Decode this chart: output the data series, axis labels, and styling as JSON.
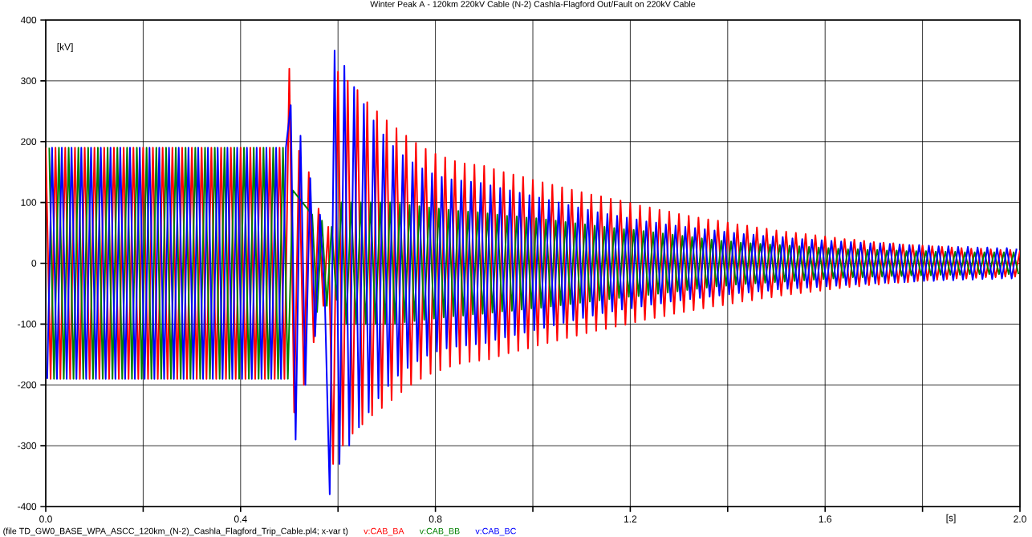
{
  "chart_data": {
    "type": "line",
    "title": "Winter Peak A - 120km 220kV Cable (N-2) Cashla-Flagford Out/Fault on 220kV Cable",
    "xlabel": "[s]",
    "ylabel": "[kV]",
    "annotations": [
      "(file TD_GW0_BASE_WPA_ASCC_120km_(N-2)_Cashla_Flagford_Trip_Cable.pl4; x-var t)"
    ],
    "xlim": [
      0,
      2
    ],
    "ylim": [
      -400,
      400
    ],
    "xticks": [
      {
        "value": 0,
        "label": "0.0"
      },
      {
        "value": 0.2,
        "label": null
      },
      {
        "value": 0.4,
        "label": "0.4"
      },
      {
        "value": 0.6,
        "label": null
      },
      {
        "value": 0.8,
        "label": "0.8"
      },
      {
        "value": 1.0,
        "label": null
      },
      {
        "value": 1.2,
        "label": "1.2"
      },
      {
        "value": 1.4,
        "label": null
      },
      {
        "value": 1.6,
        "label": "1.6"
      },
      {
        "value": 1.8,
        "label": null
      },
      {
        "value": 2.0,
        "label": "2.0"
      }
    ],
    "yticks": [
      -400,
      -300,
      -200,
      -100,
      0,
      100,
      200,
      300,
      400
    ],
    "grid": true,
    "legend": "bottom",
    "line_style": "solid",
    "series": [
      {
        "name": "v:CAB_BA",
        "color": "#ff0000",
        "x": [
          0,
          0.01,
          0.02,
          0.03,
          0.04,
          0.05,
          0.06,
          0.07,
          0.08,
          0.09,
          0.1,
          0.11,
          0.12,
          0.13,
          0.14,
          0.15,
          0.16,
          0.17,
          0.18,
          0.19,
          0.2,
          0.21,
          0.22,
          0.23,
          0.24,
          0.25,
          0.26,
          0.27,
          0.28,
          0.29,
          0.3,
          0.31,
          0.32,
          0.33,
          0.34,
          0.35,
          0.36,
          0.37,
          0.38,
          0.39,
          0.4,
          0.41,
          0.42,
          0.43,
          0.44,
          0.45,
          0.46,
          0.47,
          0.48,
          0.49,
          0.5,
          0.51,
          0.52,
          0.53,
          0.54,
          0.55,
          0.56,
          0.57,
          0.58,
          0.59,
          0.6,
          0.61,
          0.62,
          0.63,
          0.64,
          0.65,
          0.66,
          0.67,
          0.68,
          0.69,
          0.7,
          0.71,
          0.72,
          0.73,
          0.74,
          0.75,
          0.76,
          0.77,
          0.78,
          0.79,
          0.8,
          0.81,
          0.82,
          0.83,
          0.84,
          0.85,
          0.86,
          0.87,
          0.88,
          0.89,
          0.9,
          0.91,
          0.92,
          0.93,
          0.94,
          0.95,
          0.96,
          0.97,
          0.98,
          0.99,
          1.0,
          1.01,
          1.02,
          1.03,
          1.04,
          1.05,
          1.06,
          1.07,
          1.08,
          1.09,
          1.1,
          1.11,
          1.12,
          1.13,
          1.14,
          1.15,
          1.16,
          1.17,
          1.18,
          1.19,
          1.2,
          1.21,
          1.22,
          1.23,
          1.24,
          1.25,
          1.26,
          1.27,
          1.28,
          1.29,
          1.3,
          1.31,
          1.32,
          1.33,
          1.34,
          1.35,
          1.36,
          1.37,
          1.38,
          1.39,
          1.4,
          1.41,
          1.42,
          1.43,
          1.44,
          1.45,
          1.46,
          1.47,
          1.48,
          1.49,
          1.5,
          1.51,
          1.52,
          1.53,
          1.54,
          1.55,
          1.56,
          1.57,
          1.58,
          1.59,
          1.6,
          1.61,
          1.62,
          1.63,
          1.64,
          1.65,
          1.66,
          1.67,
          1.68,
          1.69,
          1.7,
          1.71,
          1.72,
          1.73,
          1.74,
          1.75,
          1.76,
          1.77,
          1.78,
          1.79,
          1.8,
          1.81,
          1.82,
          1.83,
          1.84,
          1.85,
          1.86,
          1.87,
          1.88,
          1.89,
          1.9,
          1.91,
          1.92,
          1.93,
          1.94,
          1.95,
          1.96,
          1.97,
          1.98,
          1.99,
          2.0
        ],
        "values": [
          190,
          -190,
          190,
          -190,
          190,
          -190,
          190,
          -190,
          190,
          -190,
          190,
          -190,
          190,
          -190,
          190,
          -190,
          190,
          -190,
          190,
          -190,
          190,
          -190,
          190,
          -190,
          190,
          -190,
          190,
          -190,
          190,
          -190,
          190,
          -190,
          190,
          -190,
          190,
          -190,
          190,
          -190,
          190,
          -190,
          190,
          -190,
          190,
          -190,
          190,
          -190,
          190,
          -190,
          190,
          -190,
          320,
          -245,
          185,
          -200,
          150,
          -130,
          90,
          -70,
          60,
          -330,
          315,
          -300,
          300,
          -280,
          285,
          -265,
          265,
          -250,
          250,
          -238,
          235,
          -225,
          222,
          -212,
          210,
          -200,
          198,
          -190,
          188,
          -182,
          180,
          -176,
          174,
          -170,
          168,
          -165,
          164,
          -162,
          162,
          -160,
          160,
          -158,
          155,
          -153,
          150,
          -148,
          146,
          -144,
          142,
          -140,
          137,
          -135,
          133,
          -131,
          129,
          -127,
          125,
          -123,
          121,
          -119,
          117,
          -115,
          113,
          -111,
          110,
          -108,
          106,
          -104,
          103,
          -101,
          99,
          -97,
          95,
          -93,
          92,
          -90,
          88,
          -87,
          85,
          -83,
          81,
          -80,
          78,
          -77,
          75,
          -74,
          72,
          -71,
          70,
          -69,
          67,
          -66,
          64,
          -63,
          62,
          -61,
          59,
          -58,
          57,
          -56,
          54,
          -53,
          52,
          -51,
          50,
          -49,
          48,
          -47,
          46,
          -45,
          44,
          -43,
          42,
          -41,
          40,
          -39,
          39,
          -38,
          37,
          -36,
          35,
          -35,
          34,
          -33,
          33,
          -32,
          31,
          -31,
          30,
          -29,
          29,
          -28,
          28,
          -27,
          27,
          -26,
          26,
          -25,
          25,
          -25,
          24,
          -24,
          24,
          -23,
          23,
          -23,
          22,
          -22,
          22,
          -22,
          21
        ]
      },
      {
        "name": "v:CAB_BB",
        "color": "#008000",
        "x": [
          0.007,
          0.017,
          0.027,
          0.037,
          0.047,
          0.057,
          0.067,
          0.077,
          0.087,
          0.097,
          0.107,
          0.117,
          0.127,
          0.137,
          0.147,
          0.157,
          0.167,
          0.177,
          0.187,
          0.197,
          0.207,
          0.217,
          0.227,
          0.237,
          0.247,
          0.257,
          0.267,
          0.277,
          0.287,
          0.297,
          0.307,
          0.317,
          0.327,
          0.337,
          0.347,
          0.357,
          0.367,
          0.377,
          0.387,
          0.397,
          0.407,
          0.417,
          0.427,
          0.437,
          0.447,
          0.457,
          0.467,
          0.477,
          0.487,
          0.497,
          0.507,
          0.517,
          0.527,
          0.537,
          0.547,
          0.557,
          0.567,
          0.577,
          0.587,
          0.597,
          0.607,
          0.617,
          0.627,
          0.637,
          0.647,
          0.657,
          0.667,
          0.677,
          0.687,
          0.697,
          0.707,
          0.717,
          0.727,
          0.737,
          0.747,
          0.757,
          0.767,
          0.777,
          0.787,
          0.797,
          0.807,
          0.817,
          0.827,
          0.837,
          0.847,
          0.857,
          0.867,
          0.877,
          0.887,
          0.897,
          0.907,
          0.917,
          0.927,
          0.937,
          0.947,
          0.957,
          0.967,
          0.977,
          0.987,
          0.997,
          1.007,
          1.017,
          1.027,
          1.037,
          1.047,
          1.057,
          1.067,
          1.077,
          1.087,
          1.097,
          1.107,
          1.117,
          1.127,
          1.137,
          1.147,
          1.157,
          1.167,
          1.177,
          1.187,
          1.197,
          1.207,
          1.217,
          1.227,
          1.237,
          1.247,
          1.257,
          1.267,
          1.277,
          1.287,
          1.297,
          1.307,
          1.317,
          1.327,
          1.337,
          1.347,
          1.357,
          1.367,
          1.377,
          1.387,
          1.397,
          1.407,
          1.417,
          1.427,
          1.437,
          1.447,
          1.457,
          1.467,
          1.477,
          1.487,
          1.497,
          1.507,
          1.517,
          1.527,
          1.537,
          1.547,
          1.557,
          1.567,
          1.577,
          1.587,
          1.597,
          1.607,
          1.617,
          1.627,
          1.637,
          1.647,
          1.657,
          1.667,
          1.677,
          1.687,
          1.697,
          1.707,
          1.717,
          1.727,
          1.737,
          1.747,
          1.757,
          1.767,
          1.777,
          1.787,
          1.797,
          1.807,
          1.817,
          1.827,
          1.837,
          1.847,
          1.857,
          1.867,
          1.877,
          1.887,
          1.897,
          1.907,
          1.917,
          1.927,
          1.937,
          1.947,
          1.957,
          1.967,
          1.977,
          1.987,
          1.997
        ],
        "values": [
          190,
          -190,
          190,
          -190,
          190,
          -190,
          190,
          -190,
          190,
          -190,
          190,
          -190,
          190,
          -190,
          190,
          -190,
          190,
          -190,
          190,
          -190,
          190,
          -190,
          190,
          -190,
          190,
          -190,
          190,
          -190,
          190,
          -190,
          190,
          -190,
          190,
          -190,
          190,
          -190,
          190,
          -190,
          190,
          -190,
          190,
          -190,
          190,
          -190,
          190,
          -190,
          190,
          -190,
          190,
          -190,
          120,
          null,
          100,
          null,
          80,
          -80,
          70,
          -70,
          60,
          -60,
          100,
          -100,
          100,
          -100,
          100,
          -100,
          100,
          -100,
          100,
          -100,
          100,
          -99,
          98,
          -97,
          96,
          -95,
          94,
          -93,
          92,
          -91,
          90,
          -89,
          88,
          -87,
          86,
          -86,
          85,
          -84,
          84,
          -83,
          82,
          -81,
          80,
          -79,
          78,
          -78,
          77,
          -76,
          75,
          -74,
          74,
          -73,
          72,
          -71,
          70,
          -69,
          68,
          -67,
          66,
          -65,
          64,
          -63,
          62,
          -61,
          60,
          -59,
          58,
          -57,
          56,
          -55,
          55,
          -54,
          53,
          -52,
          51,
          -50,
          49,
          -48,
          47,
          -46,
          45,
          -44,
          43,
          -42,
          41,
          -40,
          39,
          -38,
          37,
          -37,
          36,
          -35,
          34,
          -34,
          33,
          -33,
          32,
          -32,
          31,
          -31,
          30,
          -30,
          29,
          -29,
          28,
          -28,
          27,
          -27,
          26,
          -26,
          25,
          -25,
          24,
          -24,
          23,
          -23,
          23,
          -23,
          22,
          -22,
          22,
          -22,
          21,
          -21,
          21,
          -21,
          20,
          -20,
          20,
          -20,
          20,
          -20,
          19,
          -19,
          19,
          -19,
          19,
          -19,
          18,
          -18,
          18,
          -18,
          18,
          -18,
          18,
          -18,
          18,
          -18,
          18,
          -18
        ]
      },
      {
        "name": "v:CAB_BC",
        "color": "#0000ff",
        "x": [
          0.003,
          0.013,
          0.023,
          0.033,
          0.043,
          0.053,
          0.063,
          0.073,
          0.083,
          0.093,
          0.103,
          0.113,
          0.123,
          0.133,
          0.143,
          0.153,
          0.163,
          0.173,
          0.183,
          0.193,
          0.203,
          0.213,
          0.223,
          0.233,
          0.243,
          0.253,
          0.263,
          0.273,
          0.283,
          0.293,
          0.303,
          0.313,
          0.323,
          0.333,
          0.343,
          0.353,
          0.363,
          0.373,
          0.383,
          0.393,
          0.403,
          0.413,
          0.423,
          0.433,
          0.443,
          0.453,
          0.463,
          0.473,
          0.483,
          0.493,
          0.503,
          0.513,
          0.523,
          0.533,
          0.543,
          0.553,
          0.563,
          0.573,
          0.583,
          0.593,
          0.603,
          0.613,
          0.623,
          0.633,
          0.643,
          0.653,
          0.663,
          0.673,
          0.683,
          0.693,
          0.703,
          0.713,
          0.723,
          0.733,
          0.743,
          0.753,
          0.763,
          0.773,
          0.783,
          0.793,
          0.803,
          0.813,
          0.823,
          0.833,
          0.843,
          0.853,
          0.863,
          0.873,
          0.883,
          0.893,
          0.903,
          0.913,
          0.923,
          0.933,
          0.943,
          0.953,
          0.963,
          0.973,
          0.983,
          0.993,
          1.003,
          1.013,
          1.023,
          1.033,
          1.043,
          1.053,
          1.063,
          1.073,
          1.083,
          1.093,
          1.103,
          1.113,
          1.123,
          1.133,
          1.143,
          1.153,
          1.163,
          1.173,
          1.183,
          1.193,
          1.203,
          1.213,
          1.223,
          1.233,
          1.243,
          1.253,
          1.263,
          1.273,
          1.283,
          1.293,
          1.303,
          1.313,
          1.323,
          1.333,
          1.343,
          1.353,
          1.363,
          1.373,
          1.383,
          1.393,
          1.403,
          1.413,
          1.423,
          1.433,
          1.443,
          1.453,
          1.463,
          1.473,
          1.483,
          1.493,
          1.503,
          1.513,
          1.523,
          1.533,
          1.543,
          1.553,
          1.563,
          1.573,
          1.583,
          1.593,
          1.603,
          1.613,
          1.623,
          1.633,
          1.643,
          1.653,
          1.663,
          1.673,
          1.683,
          1.693,
          1.703,
          1.713,
          1.723,
          1.733,
          1.743,
          1.753,
          1.763,
          1.773,
          1.783,
          1.793,
          1.803,
          1.813,
          1.823,
          1.833,
          1.843,
          1.853,
          1.863,
          1.873,
          1.883,
          1.893,
          1.903,
          1.913,
          1.923,
          1.933,
          1.943,
          1.953,
          1.963,
          1.973,
          1.983,
          1.993
        ],
        "values": [
          -190,
          190,
          -190,
          190,
          -190,
          190,
          -190,
          190,
          -190,
          190,
          -190,
          190,
          -190,
          190,
          -190,
          190,
          -190,
          190,
          -190,
          190,
          -190,
          190,
          -190,
          190,
          -190,
          190,
          -190,
          190,
          -190,
          190,
          -190,
          190,
          -190,
          190,
          -190,
          190,
          -190,
          190,
          -190,
          190,
          -190,
          190,
          -190,
          190,
          -190,
          190,
          -190,
          190,
          -190,
          190,
          260,
          -290,
          210,
          -200,
          140,
          -120,
          80,
          -60,
          -380,
          350,
          -330,
          325,
          -300,
          290,
          -270,
          262,
          -245,
          235,
          -222,
          212,
          -202,
          193,
          -185,
          178,
          -172,
          166,
          -161,
          156,
          -152,
          148,
          -145,
          142,
          -140,
          138,
          -137,
          136,
          -135,
          134,
          -133,
          132,
          -131,
          128,
          -126,
          124,
          -122,
          120,
          -118,
          116,
          -114,
          112,
          -110,
          108,
          -106,
          104,
          -102,
          100,
          -98,
          96,
          -94,
          92,
          -90,
          88,
          -86,
          84,
          -82,
          81,
          -79,
          78,
          -76,
          75,
          -74,
          72,
          -71,
          69,
          -68,
          67,
          -66,
          64,
          -63,
          62,
          -61,
          60,
          -59,
          58,
          -57,
          56,
          -55,
          54,
          -53,
          52,
          -51,
          50,
          -49,
          48,
          -48,
          47,
          -46,
          45,
          -45,
          44,
          -43,
          43,
          -42,
          41,
          -41,
          40,
          -40,
          39,
          -39,
          38,
          -38,
          37,
          -37,
          36,
          -36,
          35,
          -35,
          34,
          -34,
          33,
          -33,
          33,
          -32,
          32,
          -31,
          31,
          -31,
          30,
          -30,
          30,
          -29,
          29,
          -29,
          28,
          -28,
          28,
          -28,
          27,
          -27,
          27,
          -27,
          26,
          -26,
          26,
          -26,
          25,
          -25,
          25,
          -25,
          24
        ]
      }
    ]
  }
}
